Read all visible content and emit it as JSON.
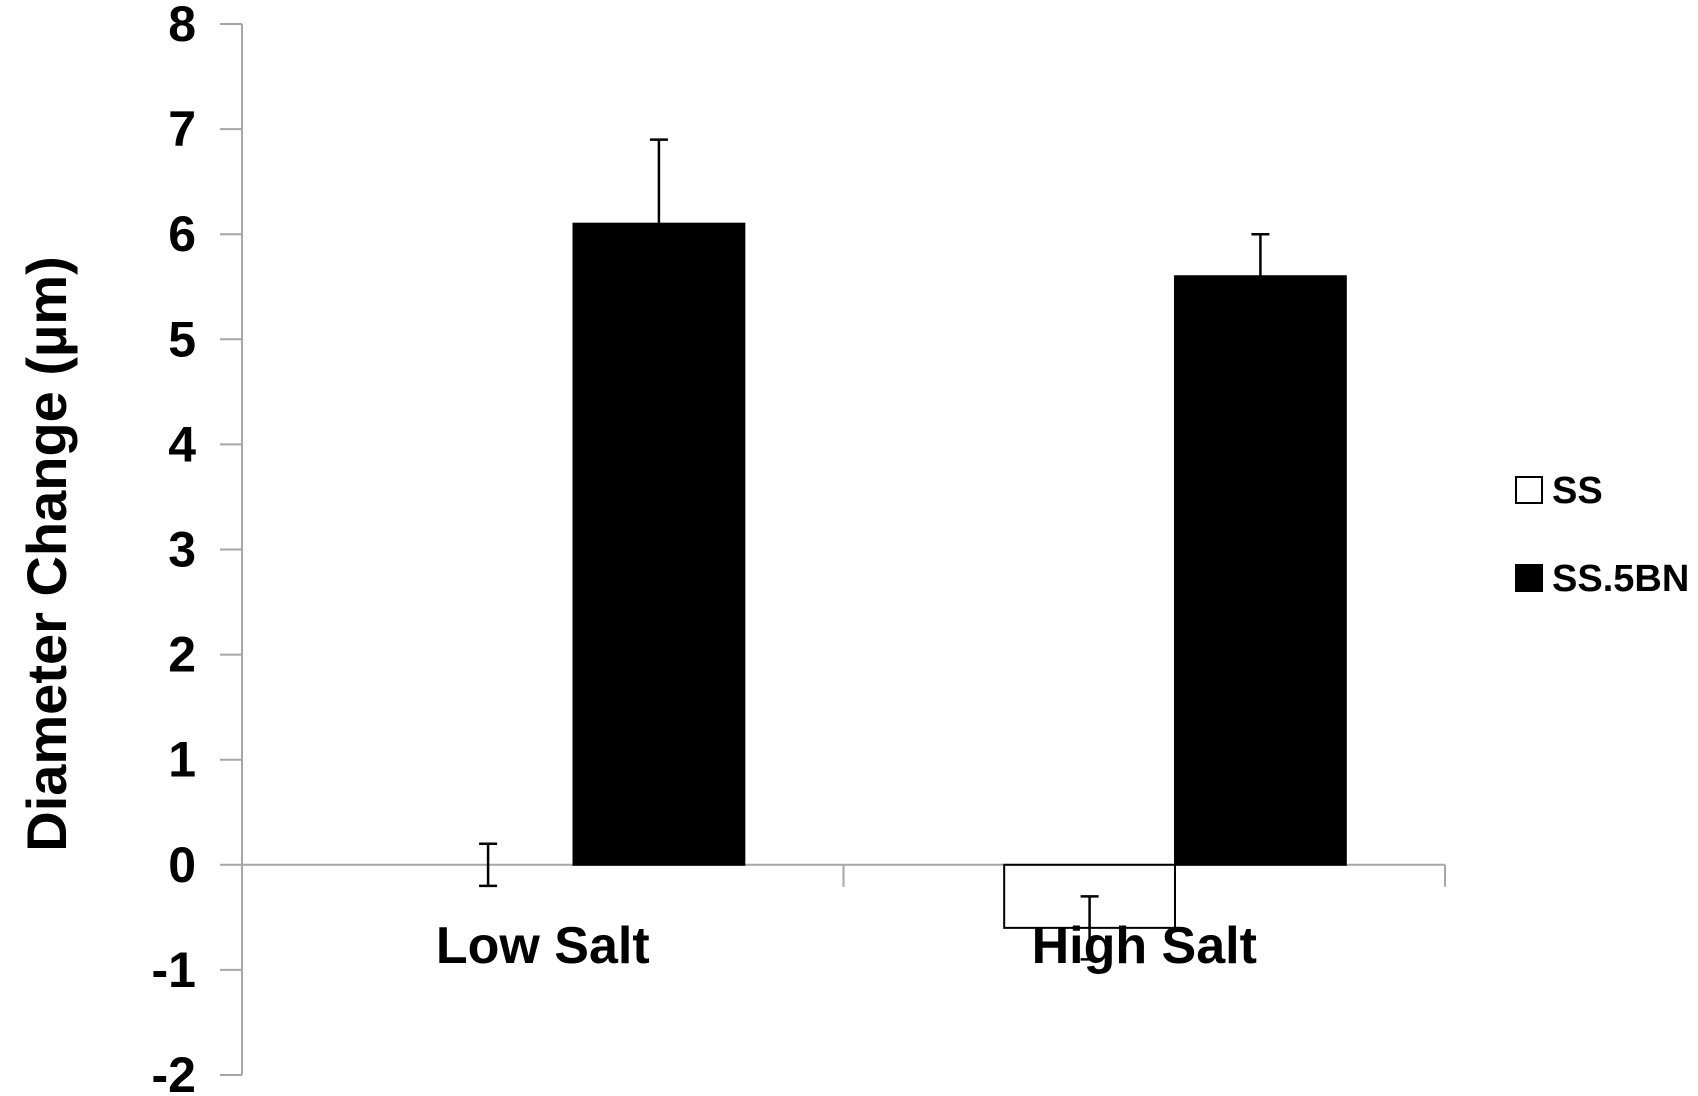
{
  "chart_data": {
    "type": "bar",
    "title": "",
    "xlabel": "",
    "ylabel": "Diameter Change (µm)",
    "ylim": [
      -2,
      8
    ],
    "yticks": [
      -2,
      -1,
      0,
      1,
      2,
      3,
      4,
      5,
      6,
      7,
      8
    ],
    "categories": [
      "Low Salt",
      "High Salt"
    ],
    "series": [
      {
        "name": "SS",
        "fill": "#ffffff",
        "stroke": "#000000",
        "values": [
          0,
          -0.6
        ],
        "errors": [
          0.2,
          0.3
        ]
      },
      {
        "name": "SS.5BN",
        "fill": "#000000",
        "stroke": "#000000",
        "values": [
          6.1,
          5.6
        ],
        "errors": [
          0.8,
          0.4
        ]
      }
    ],
    "error_bars": "upper for positive values, both for zero/negative",
    "grid": false,
    "legend": "right"
  },
  "colors": {
    "axis": "#a6a6a6",
    "text": "#000000"
  }
}
